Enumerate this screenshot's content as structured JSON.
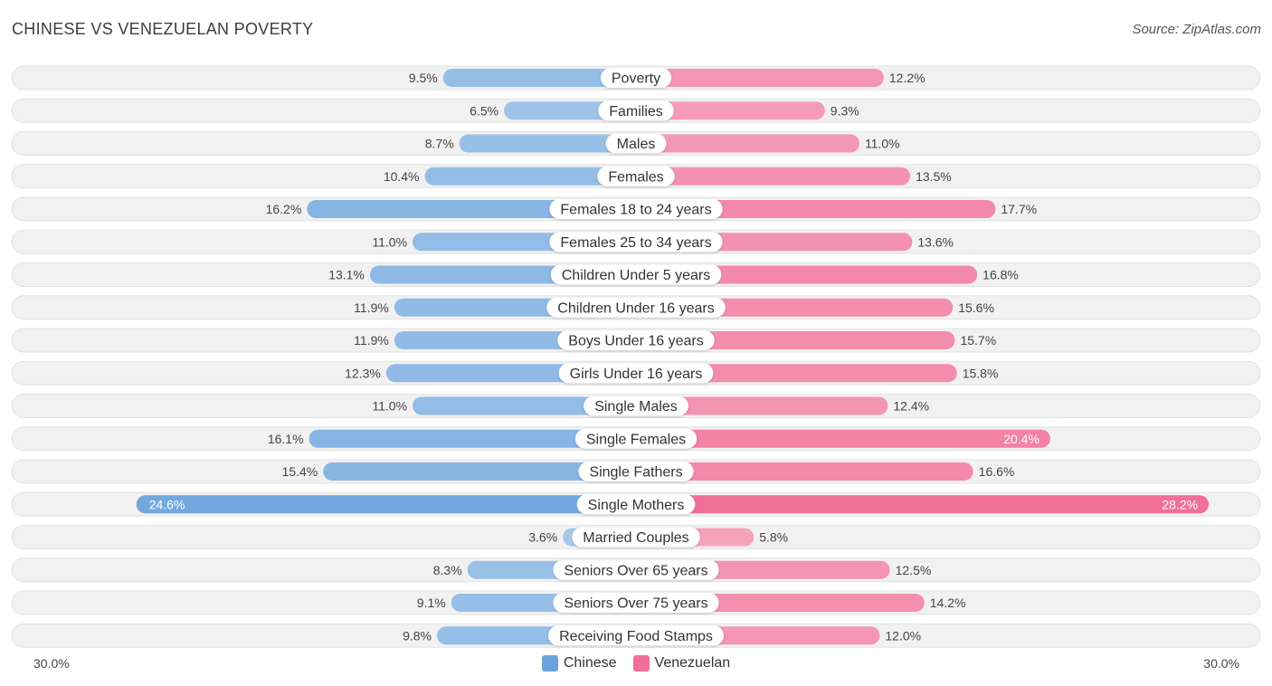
{
  "chart_data": {
    "type": "bar",
    "orientation": "horizontal-diverging",
    "title": "CHINESE VS VENEZUELAN POVERTY",
    "source": "Source: ZipAtlas.com",
    "axis_min_label": "30.0%",
    "axis_max_label": "30.0%",
    "xlim": [
      -30,
      30
    ],
    "categories": [
      "Poverty",
      "Families",
      "Males",
      "Females",
      "Females 18 to 24 years",
      "Females 25 to 34 years",
      "Children Under 5 years",
      "Children Under 16 years",
      "Boys Under 16 years",
      "Girls Under 16 years",
      "Single Males",
      "Single Females",
      "Single Fathers",
      "Single Mothers",
      "Married Couples",
      "Seniors Over 65 years",
      "Seniors Over 75 years",
      "Receiving Food Stamps"
    ],
    "series": [
      {
        "name": "Chinese",
        "color": "#6aa3dc",
        "values": [
          9.5,
          6.5,
          8.7,
          10.4,
          16.2,
          11.0,
          13.1,
          11.9,
          11.9,
          12.3,
          11.0,
          16.1,
          15.4,
          24.6,
          3.6,
          8.3,
          9.1,
          9.8
        ],
        "labels": [
          "9.5%",
          "6.5%",
          "8.7%",
          "10.4%",
          "16.2%",
          "11.0%",
          "13.1%",
          "11.9%",
          "11.9%",
          "12.3%",
          "11.0%",
          "16.1%",
          "15.4%",
          "24.6%",
          "3.6%",
          "8.3%",
          "9.1%",
          "9.8%"
        ]
      },
      {
        "name": "Venezuelan",
        "color": "#f07099",
        "values": [
          12.2,
          9.3,
          11.0,
          13.5,
          17.7,
          13.6,
          16.8,
          15.6,
          15.7,
          15.8,
          12.4,
          20.4,
          16.6,
          28.2,
          5.8,
          12.5,
          14.2,
          12.0
        ],
        "labels": [
          "12.2%",
          "9.3%",
          "11.0%",
          "13.5%",
          "17.7%",
          "13.6%",
          "16.8%",
          "15.6%",
          "15.7%",
          "15.8%",
          "12.4%",
          "20.4%",
          "16.6%",
          "28.2%",
          "5.8%",
          "12.5%",
          "14.2%",
          "12.0%"
        ]
      }
    ],
    "legend": [
      "Chinese",
      "Venezuelan"
    ],
    "legend_position": "bottom-center"
  }
}
